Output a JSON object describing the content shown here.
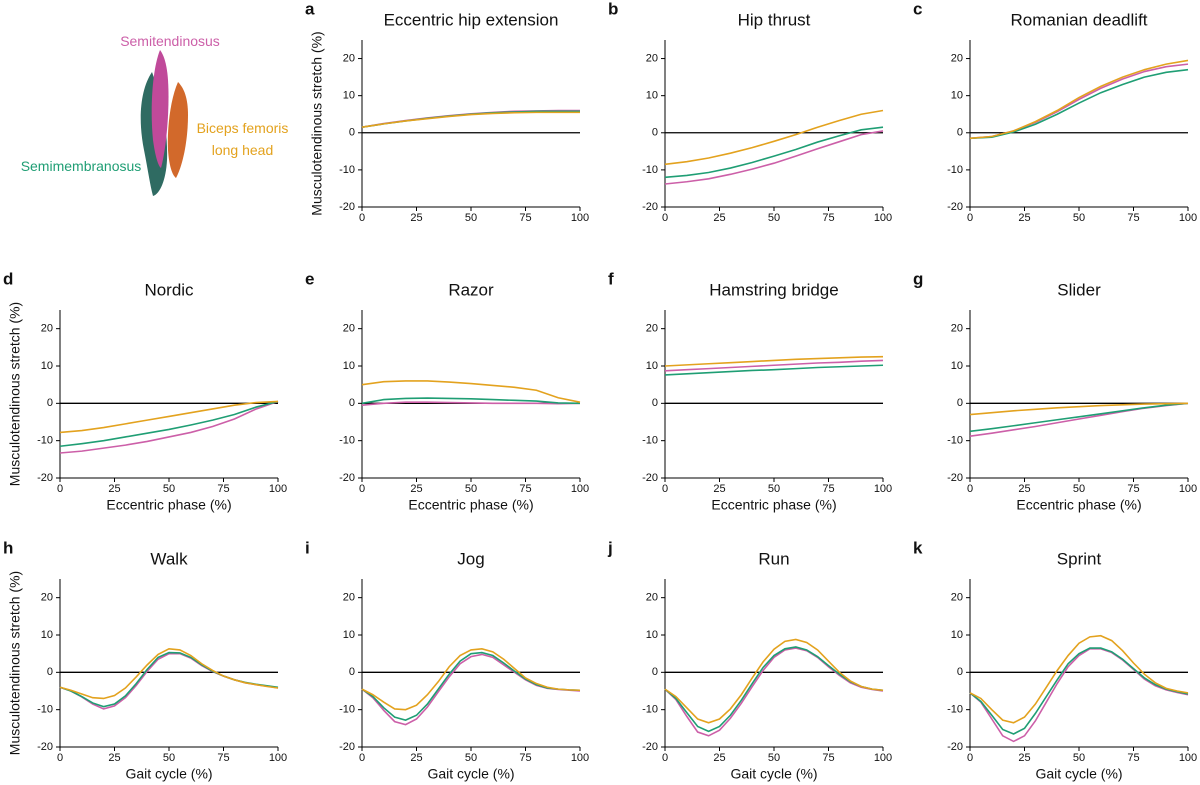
{
  "legend": [
    {
      "name": "Semitendinosus",
      "color": "#cc5fa8"
    },
    {
      "name": "Semimembranosus",
      "color": "#1f9e74"
    },
    {
      "name": "Biceps femoris long head",
      "color": "#e3a21e"
    }
  ],
  "chart_data": [
    {
      "type": "line",
      "panel_label": "a",
      "title": "Eccentric hip extension",
      "ylabel": "Musculotendinous stretch (%)",
      "x": [
        0,
        10,
        20,
        30,
        40,
        50,
        60,
        70,
        80,
        90,
        100
      ],
      "xlim": [
        0,
        100
      ],
      "xticks": [
        0,
        25,
        50,
        75,
        100
      ],
      "ylim": [
        -20,
        25
      ],
      "yticks": [
        -20,
        -10,
        0,
        10,
        20
      ],
      "hline": 0,
      "series": [
        {
          "values": [
            1.5,
            2.5,
            3.3,
            4,
            4.6,
            5.1,
            5.5,
            5.8,
            5.9,
            6,
            6
          ]
        },
        {
          "values": [
            1.5,
            2.4,
            3.2,
            3.9,
            4.5,
            5,
            5.4,
            5.6,
            5.8,
            5.8,
            5.8
          ]
        },
        {
          "values": [
            1.5,
            2.4,
            3.2,
            3.8,
            4.4,
            4.9,
            5.2,
            5.4,
            5.5,
            5.5,
            5.5
          ]
        }
      ]
    },
    {
      "type": "line",
      "panel_label": "b",
      "title": "Hip thrust",
      "x": [
        0,
        10,
        20,
        30,
        40,
        50,
        60,
        70,
        80,
        90,
        100
      ],
      "xlim": [
        0,
        100
      ],
      "xticks": [
        0,
        25,
        50,
        75,
        100
      ],
      "ylim": [
        -20,
        25
      ],
      "yticks": [
        -20,
        -10,
        0,
        10,
        20
      ],
      "hline": 0,
      "series": [
        {
          "values": [
            -13.8,
            -13.2,
            -12.4,
            -11.2,
            -9.8,
            -8.2,
            -6.3,
            -4.3,
            -2.4,
            -0.5,
            0.5
          ]
        },
        {
          "values": [
            -12,
            -11.5,
            -10.7,
            -9.5,
            -8,
            -6.3,
            -4.5,
            -2.5,
            -0.8,
            0.8,
            1.5
          ]
        },
        {
          "values": [
            -8.5,
            -7.8,
            -6.8,
            -5.5,
            -4,
            -2.3,
            -0.5,
            1.5,
            3.3,
            5,
            6
          ]
        }
      ]
    },
    {
      "type": "line",
      "panel_label": "c",
      "title": "Romanian deadlift",
      "x": [
        0,
        10,
        20,
        30,
        40,
        50,
        60,
        70,
        80,
        90,
        100
      ],
      "xlim": [
        0,
        100
      ],
      "xticks": [
        0,
        25,
        50,
        75,
        100
      ],
      "ylim": [
        -20,
        25
      ],
      "yticks": [
        -20,
        -10,
        0,
        10,
        20
      ],
      "hline": 0,
      "series": [
        {
          "values": [
            -1.5,
            -1,
            0.5,
            2.8,
            5.7,
            9,
            12,
            14.5,
            16.5,
            17.8,
            18.5
          ]
        },
        {
          "values": [
            -1.5,
            -1.2,
            0.2,
            2.3,
            5,
            8,
            10.8,
            13,
            15,
            16.3,
            17
          ]
        },
        {
          "values": [
            -1.5,
            -1,
            0.5,
            3,
            6,
            9.5,
            12.5,
            15,
            17,
            18.5,
            19.5
          ]
        }
      ]
    },
    {
      "type": "line",
      "panel_label": "d",
      "title": "Nordic",
      "ylabel": "Musculotendinous stretch (%)",
      "xlabel": "Eccentric phase (%)",
      "x": [
        0,
        10,
        20,
        30,
        40,
        50,
        60,
        70,
        80,
        90,
        100
      ],
      "xlim": [
        0,
        100
      ],
      "xticks": [
        0,
        25,
        50,
        75,
        100
      ],
      "ylim": [
        -20,
        25
      ],
      "yticks": [
        -20,
        -10,
        0,
        10,
        20
      ],
      "hline": 0,
      "series": [
        {
          "values": [
            -13.3,
            -12.8,
            -12,
            -11.2,
            -10.2,
            -9,
            -7.8,
            -6.2,
            -4.2,
            -1.5,
            0.5
          ]
        },
        {
          "values": [
            -11.5,
            -10.8,
            -10,
            -9,
            -8,
            -7,
            -5.8,
            -4.5,
            -3,
            -1,
            0.5
          ]
        },
        {
          "values": [
            -7.8,
            -7.3,
            -6.5,
            -5.5,
            -4.5,
            -3.5,
            -2.5,
            -1.5,
            -0.5,
            0.2,
            0.5
          ]
        }
      ]
    },
    {
      "type": "line",
      "panel_label": "e",
      "title": "Razor",
      "xlabel": "Eccentric phase (%)",
      "x": [
        0,
        10,
        20,
        30,
        40,
        50,
        60,
        70,
        80,
        90,
        100
      ],
      "xlim": [
        0,
        100
      ],
      "xticks": [
        0,
        25,
        50,
        75,
        100
      ],
      "ylim": [
        -20,
        25
      ],
      "yticks": [
        -20,
        -10,
        0,
        10,
        20
      ],
      "hline": 0,
      "series": [
        {
          "values": [
            -0.5,
            0,
            0.3,
            0.3,
            0.2,
            0.1,
            0,
            0,
            0,
            -0.1,
            0
          ]
        },
        {
          "values": [
            0,
            1,
            1.3,
            1.4,
            1.3,
            1.2,
            1,
            0.8,
            0.6,
            0.1,
            0
          ]
        },
        {
          "values": [
            5,
            5.8,
            6,
            6,
            5.7,
            5.3,
            4.8,
            4.3,
            3.5,
            1.5,
            0.3
          ]
        }
      ]
    },
    {
      "type": "line",
      "panel_label": "f",
      "title": "Hamstring bridge",
      "xlabel": "Eccentric phase (%)",
      "x": [
        0,
        10,
        20,
        30,
        40,
        50,
        60,
        70,
        80,
        90,
        100
      ],
      "xlim": [
        0,
        100
      ],
      "xticks": [
        0,
        25,
        50,
        75,
        100
      ],
      "ylim": [
        -20,
        25
      ],
      "yticks": [
        -20,
        -10,
        0,
        10,
        20
      ],
      "hline": 0,
      "series": [
        {
          "values": [
            8.7,
            9,
            9.3,
            9.6,
            9.9,
            10.2,
            10.5,
            10.8,
            11,
            11.3,
            11.5
          ]
        },
        {
          "values": [
            7.6,
            7.9,
            8.2,
            8.5,
            8.8,
            9,
            9.3,
            9.6,
            9.8,
            10,
            10.2
          ]
        },
        {
          "values": [
            10,
            10.3,
            10.6,
            10.9,
            11.2,
            11.5,
            11.8,
            12,
            12.2,
            12.4,
            12.5
          ]
        }
      ]
    },
    {
      "type": "line",
      "panel_label": "g",
      "title": "Slider",
      "xlabel": "Eccentric phase (%)",
      "x": [
        0,
        10,
        20,
        30,
        40,
        50,
        60,
        70,
        80,
        90,
        100
      ],
      "xlim": [
        0,
        100
      ],
      "xticks": [
        0,
        25,
        50,
        75,
        100
      ],
      "ylim": [
        -20,
        25
      ],
      "yticks": [
        -20,
        -10,
        0,
        10,
        20
      ],
      "hline": 0,
      "series": [
        {
          "values": [
            -8.8,
            -8,
            -7.1,
            -6.2,
            -5.2,
            -4.2,
            -3.2,
            -2.2,
            -1.3,
            -0.6,
            0
          ]
        },
        {
          "values": [
            -7.5,
            -6.8,
            -6,
            -5.2,
            -4.4,
            -3.6,
            -2.8,
            -2,
            -1.2,
            -0.5,
            0
          ]
        },
        {
          "values": [
            -3,
            -2.5,
            -2,
            -1.6,
            -1.2,
            -0.9,
            -0.6,
            -0.4,
            -0.2,
            -0.1,
            0
          ]
        }
      ]
    },
    {
      "type": "line",
      "panel_label": "h",
      "title": "Walk",
      "ylabel": "Musculotendinous stretch (%)",
      "xlabel": "Gait cycle (%)",
      "x": [
        0,
        5,
        10,
        15,
        20,
        25,
        30,
        35,
        40,
        45,
        50,
        55,
        60,
        65,
        70,
        75,
        80,
        85,
        90,
        95,
        100
      ],
      "xlim": [
        0,
        100
      ],
      "xticks": [
        0,
        25,
        50,
        75,
        100
      ],
      "ylim": [
        -20,
        25
      ],
      "yticks": [
        -20,
        -10,
        0,
        10,
        20
      ],
      "hline": 0,
      "series": [
        {
          "values": [
            -4,
            -5,
            -6.6,
            -8.5,
            -9.8,
            -9,
            -6.8,
            -3.5,
            0.3,
            3.5,
            5,
            5,
            3.8,
            1.8,
            0.2,
            -1,
            -2,
            -2.8,
            -3.3,
            -3.7,
            -4.2
          ]
        },
        {
          "values": [
            -4,
            -5,
            -6.5,
            -8.2,
            -9.2,
            -8.5,
            -6.3,
            -3,
            0.8,
            4,
            5.3,
            5.2,
            4,
            2,
            0.3,
            -1,
            -2,
            -2.7,
            -3.2,
            -3.6,
            -4
          ]
        },
        {
          "values": [
            -4,
            -4.8,
            -5.8,
            -6.8,
            -7,
            -6.2,
            -4.2,
            -1.2,
            2,
            4.8,
            6.3,
            6,
            4.5,
            2.3,
            0.5,
            -1,
            -2,
            -2.8,
            -3.3,
            -3.8,
            -4.2
          ]
        }
      ]
    },
    {
      "type": "line",
      "panel_label": "i",
      "title": "Jog",
      "xlabel": "Gait cycle (%)",
      "x": [
        0,
        5,
        10,
        15,
        20,
        25,
        30,
        35,
        40,
        45,
        50,
        55,
        60,
        65,
        70,
        75,
        80,
        85,
        90,
        95,
        100
      ],
      "xlim": [
        0,
        100
      ],
      "xticks": [
        0,
        25,
        50,
        75,
        100
      ],
      "ylim": [
        -20,
        25
      ],
      "yticks": [
        -20,
        -10,
        0,
        10,
        20
      ],
      "hline": 0,
      "series": [
        {
          "values": [
            -4.5,
            -6.8,
            -10.2,
            -13.2,
            -14,
            -12.5,
            -9.3,
            -5.2,
            -1.2,
            2.3,
            4.2,
            4.8,
            4,
            2,
            0,
            -2,
            -3.5,
            -4.3,
            -4.6,
            -4.8,
            -5
          ]
        },
        {
          "values": [
            -4.5,
            -6.5,
            -9.5,
            -12,
            -12.8,
            -11.5,
            -8.5,
            -4.5,
            -0.5,
            3,
            5,
            5.3,
            4.5,
            2.5,
            0.3,
            -1.8,
            -3.3,
            -4.2,
            -4.5,
            -4.7,
            -4.8
          ]
        },
        {
          "values": [
            -4.5,
            -6,
            -8,
            -9.8,
            -10,
            -8.8,
            -6,
            -2.5,
            1.5,
            4.5,
            6,
            6.3,
            5.5,
            3.5,
            1,
            -1.5,
            -3,
            -4,
            -4.5,
            -4.7,
            -4.8
          ]
        }
      ]
    },
    {
      "type": "line",
      "panel_label": "j",
      "title": "Run",
      "xlabel": "Gait cycle (%)",
      "x": [
        0,
        5,
        10,
        15,
        20,
        25,
        30,
        35,
        40,
        45,
        50,
        55,
        60,
        65,
        70,
        75,
        80,
        85,
        90,
        95,
        100
      ],
      "xlim": [
        0,
        100
      ],
      "xticks": [
        0,
        25,
        50,
        75,
        100
      ],
      "ylim": [
        -20,
        25
      ],
      "yticks": [
        -20,
        -10,
        0,
        10,
        20
      ],
      "hline": 0,
      "series": [
        {
          "values": [
            -4.5,
            -7.3,
            -11.8,
            -16,
            -17,
            -15.5,
            -12.3,
            -8.3,
            -3.8,
            0.5,
            4,
            6,
            6.5,
            5.8,
            4,
            1.5,
            -0.8,
            -2.8,
            -4,
            -4.6,
            -5
          ]
        },
        {
          "values": [
            -4.5,
            -7,
            -10.8,
            -14.5,
            -15.8,
            -14.5,
            -11.5,
            -7.5,
            -3,
            1.3,
            4.5,
            6.3,
            6.8,
            6,
            4.2,
            1.8,
            -0.5,
            -2.5,
            -3.8,
            -4.5,
            -4.8
          ]
        },
        {
          "values": [
            -4.5,
            -6.5,
            -9.5,
            -12.5,
            -13.5,
            -12.5,
            -9.8,
            -6,
            -1.5,
            2.8,
            6.2,
            8.3,
            8.8,
            8,
            6,
            3,
            0,
            -2.3,
            -3.8,
            -4.5,
            -4.8
          ]
        }
      ]
    },
    {
      "type": "line",
      "panel_label": "k",
      "title": "Sprint",
      "xlabel": "Gait cycle (%)",
      "x": [
        0,
        5,
        10,
        15,
        20,
        25,
        30,
        35,
        40,
        45,
        50,
        55,
        60,
        65,
        70,
        75,
        80,
        85,
        90,
        95,
        100
      ],
      "xlim": [
        0,
        100
      ],
      "xticks": [
        0,
        25,
        50,
        75,
        100
      ],
      "ylim": [
        -20,
        25
      ],
      "yticks": [
        -20,
        -10,
        0,
        10,
        20
      ],
      "hline": 0,
      "series": [
        {
          "values": [
            -5.5,
            -8,
            -12.5,
            -17,
            -18.5,
            -17,
            -13,
            -8,
            -3,
            1.5,
            4.5,
            6.3,
            6.3,
            5.3,
            3.3,
            0.8,
            -1.8,
            -3.6,
            -4.7,
            -5.4,
            -6
          ]
        },
        {
          "values": [
            -5.5,
            -7.8,
            -11.5,
            -15.3,
            -16.5,
            -15,
            -11,
            -6.5,
            -2,
            2.3,
            5,
            6.5,
            6.5,
            5.5,
            3.5,
            1,
            -1.5,
            -3.3,
            -4.5,
            -5.2,
            -5.8
          ]
        },
        {
          "values": [
            -5.5,
            -7,
            -10,
            -12.8,
            -13.5,
            -12,
            -8.5,
            -4,
            0.5,
            4.5,
            7.8,
            9.5,
            9.8,
            8.5,
            5.8,
            2.5,
            -0.5,
            -2.8,
            -4.3,
            -5,
            -5.5
          ]
        }
      ]
    }
  ]
}
